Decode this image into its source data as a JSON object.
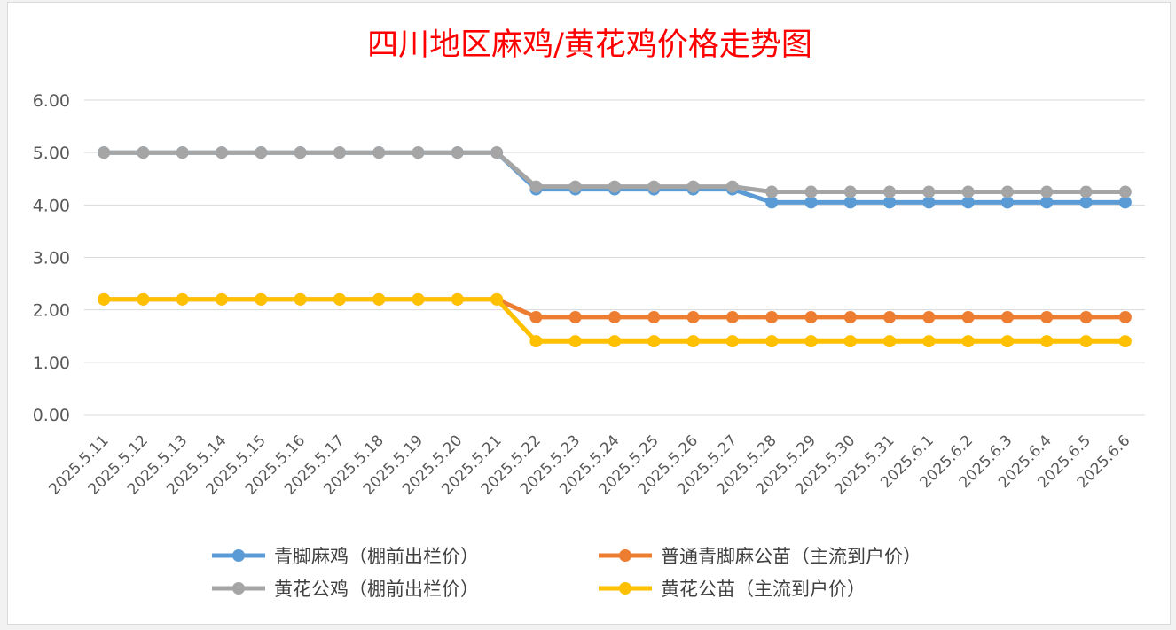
{
  "chart_data": {
    "type": "line",
    "title": "四川地区麻鸡/黄花鸡价格走势图",
    "xlabel": "",
    "ylabel": "",
    "ylim": [
      0,
      6
    ],
    "y_ticks": [
      "0.00",
      "1.00",
      "2.00",
      "3.00",
      "4.00",
      "5.00",
      "6.00"
    ],
    "grid": true,
    "legend_position": "bottom",
    "categories": [
      "2025.5.11",
      "2025.5.12",
      "2025.5.13",
      "2025.5.14",
      "2025.5.15",
      "2025.5.16",
      "2025.5.17",
      "2025.5.18",
      "2025.5.19",
      "2025.5.20",
      "2025.5.21",
      "2025.5.22",
      "2025.5.23",
      "2025.5.24",
      "2025.5.25",
      "2025.5.26",
      "2025.5.27",
      "2025.5.28",
      "2025.5.29",
      "2025.5.30",
      "2025.5.31",
      "2025.6.1",
      "2025.6.2",
      "2025.6.3",
      "2025.6.4",
      "2025.6.5",
      "2025.6.6"
    ],
    "series": [
      {
        "name": "青脚麻鸡（棚前出栏价）",
        "color": "#5b9bd5",
        "values": [
          5,
          5,
          5,
          5,
          5,
          5,
          5,
          5,
          5,
          5,
          5,
          4.3,
          4.3,
          4.3,
          4.3,
          4.3,
          4.3,
          4.05,
          4.05,
          4.05,
          4.05,
          4.05,
          4.05,
          4.05,
          4.05,
          4.05,
          4.05
        ]
      },
      {
        "name": "普通青脚麻公苗（主流到户价）",
        "color": "#ed7d31",
        "values": [
          2.2,
          2.2,
          2.2,
          2.2,
          2.2,
          2.2,
          2.2,
          2.2,
          2.2,
          2.2,
          2.2,
          1.86,
          1.86,
          1.86,
          1.86,
          1.86,
          1.86,
          1.86,
          1.86,
          1.86,
          1.86,
          1.86,
          1.86,
          1.86,
          1.86,
          1.86,
          1.86
        ]
      },
      {
        "name": "黄花公鸡（棚前出栏价）",
        "color": "#a5a5a5",
        "values": [
          5,
          5,
          5,
          5,
          5,
          5,
          5,
          5,
          5,
          5,
          5,
          4.35,
          4.35,
          4.35,
          4.35,
          4.35,
          4.35,
          4.25,
          4.25,
          4.25,
          4.25,
          4.25,
          4.25,
          4.25,
          4.25,
          4.25,
          4.25
        ]
      },
      {
        "name": "黄花公苗（主流到户价）",
        "color": "#ffc000",
        "values": [
          2.2,
          2.2,
          2.2,
          2.2,
          2.2,
          2.2,
          2.2,
          2.2,
          2.2,
          2.2,
          2.2,
          1.4,
          1.4,
          1.4,
          1.4,
          1.4,
          1.4,
          1.4,
          1.4,
          1.4,
          1.4,
          1.4,
          1.4,
          1.4,
          1.4,
          1.4,
          1.4
        ]
      }
    ]
  }
}
